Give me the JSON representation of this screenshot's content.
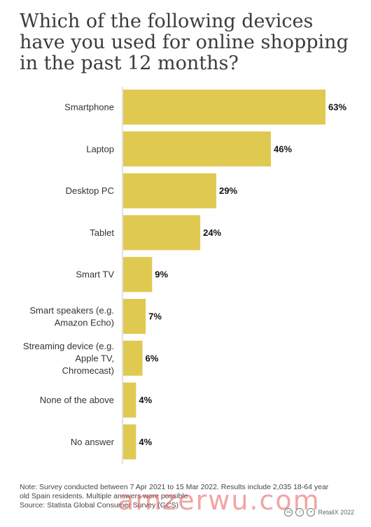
{
  "title": "Which of the following devices have you used for online shopping in the past 12 months?",
  "chart_data": {
    "type": "bar",
    "orientation": "horizontal",
    "categories": [
      [
        "Smartphone"
      ],
      [
        "Laptop"
      ],
      [
        "Desktop PC"
      ],
      [
        "Tablet"
      ],
      [
        "Smart TV"
      ],
      [
        "Smart speakers (e.g.",
        "Amazon Echo)"
      ],
      [
        "Streaming device (e.g.",
        "Apple TV,",
        "Chromecast)"
      ],
      [
        "None of the above"
      ],
      [
        "No answer"
      ]
    ],
    "values": [
      63,
      46,
      29,
      24,
      9,
      7,
      6,
      4,
      4
    ],
    "value_labels": [
      "63%",
      "46%",
      "29%",
      "24%",
      "9%",
      "7%",
      "6%",
      "4%",
      "4%"
    ],
    "bar_color": "#e0c951",
    "axis_color": "#d9d9d9",
    "xlim": [
      0,
      63
    ]
  },
  "note_lines": [
    "Note: Survey conducted between 7 Apr 2021 to 15 Mar 2022. Results include 2,035 18-64 year",
    "old Spain residents. Multiple answers were possible",
    "Source: Statista Global Consumer Survey (GCS)"
  ],
  "watermark": "amzerwu.com",
  "credit": "RetailX 2022",
  "icons": [
    "cc-icon",
    "by-icon",
    "nd-icon"
  ]
}
